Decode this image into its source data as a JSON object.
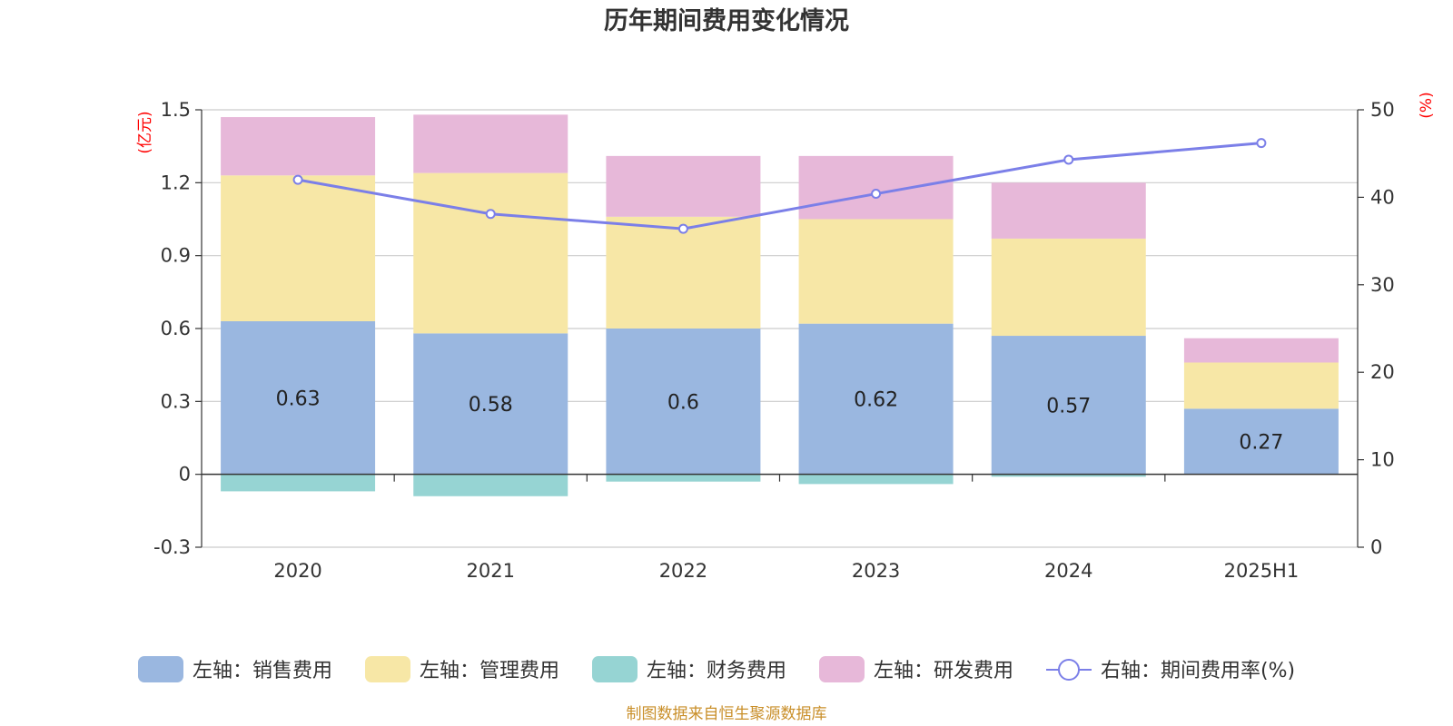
{
  "chart_data": {
    "type": "bar",
    "title": "历年期间费用变化情况",
    "categories": [
      "2020",
      "2021",
      "2022",
      "2023",
      "2024",
      "2025H1"
    ],
    "left_axis": {
      "unit": "(亿元)",
      "ylim": [
        -0.3,
        1.5
      ],
      "ticks": [
        "-0.3",
        "0",
        "0.3",
        "0.6",
        "0.9",
        "1.2",
        "1.5"
      ]
    },
    "right_axis": {
      "unit": "(%)",
      "ylim": [
        0,
        50
      ],
      "ticks": [
        "0",
        "10",
        "20",
        "30",
        "40",
        "50"
      ]
    },
    "series": [
      {
        "name": "左轴：销售费用",
        "kind": "bar",
        "axis": "left",
        "color": "#9ab7e0",
        "values": [
          0.63,
          0.58,
          0.6,
          0.62,
          0.57,
          0.27
        ],
        "labels": [
          "0.63",
          "0.58",
          "0.6",
          "0.62",
          "0.57",
          "0.27"
        ]
      },
      {
        "name": "左轴：管理费用",
        "kind": "bar",
        "axis": "left",
        "color": "#f7e7a6",
        "values": [
          0.6,
          0.66,
          0.46,
          0.43,
          0.4,
          0.19
        ]
      },
      {
        "name": "左轴：财务费用",
        "kind": "bar",
        "axis": "left",
        "color": "#96d4d3",
        "values": [
          -0.07,
          -0.09,
          -0.03,
          -0.04,
          -0.01,
          0.0
        ]
      },
      {
        "name": "左轴：研发费用",
        "kind": "bar",
        "axis": "left",
        "color": "#e7b8d9",
        "values": [
          0.24,
          0.24,
          0.25,
          0.26,
          0.23,
          0.1
        ]
      },
      {
        "name": "右轴：期间费用率(%)",
        "kind": "line",
        "axis": "right",
        "color": "#7b7fe8",
        "values": [
          42.0,
          38.1,
          36.4,
          40.4,
          44.3,
          46.2
        ]
      }
    ],
    "grid": true,
    "legend_position": "bottom"
  },
  "source_note": "制图数据来自恒生聚源数据库"
}
